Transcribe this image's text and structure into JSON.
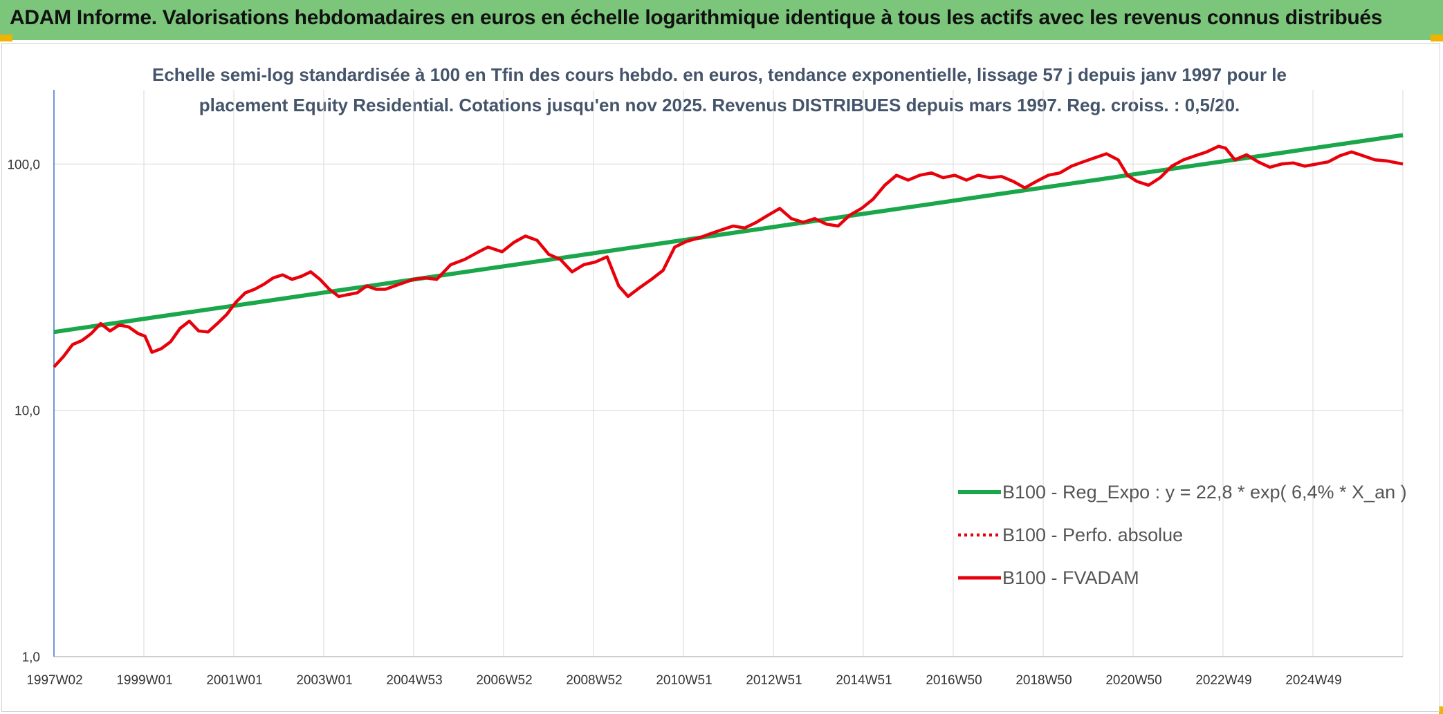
{
  "header": {
    "title": "ADAM Informe. Valorisations hebdomadaires en euros en échelle logarithmique identique à tous les actifs avec les revenus connus distribués"
  },
  "colors": {
    "header_bg": "#7bc67b",
    "accent_corner": "#f0b400",
    "regression": "#1aa64a",
    "series": "#e8000b",
    "gridline": "#d9d9d9",
    "axis": "#4472c4",
    "subtitle": "#44546a"
  },
  "chart_data": {
    "type": "line",
    "subtitle_line1": "Echelle semi-log standardisée à 100 en Tfin des cours hebdo. en euros, tendance exponentielle, lissage 57 j depuis janv 1997 pour le",
    "subtitle_line2": "placement Equity Residential. Cotations jusqu'en nov 2025. Revenus DISTRIBUES depuis mars 1997. Reg. croiss. : 0,5/20.",
    "y_scale": "log",
    "ylim": [
      1,
      200
    ],
    "y_ticks": [
      "1,0",
      "10,0",
      "100,0"
    ],
    "x_tick_labels": [
      "1997W02",
      "1999W01",
      "2001W01",
      "2003W01",
      "2004W53",
      "2006W52",
      "2008W52",
      "2010W51",
      "2012W51",
      "2014W51",
      "2016W50",
      "2018W50",
      "2020W50",
      "2022W49",
      "2024W49"
    ],
    "x_range_years": [
      1997.0,
      2025.9
    ],
    "grid": "vertical and horizontal",
    "legend_position": "bottom-right",
    "legend": [
      {
        "label": "B100 - Reg_Expo : y = 22,8 * exp( 6,4% *  X_an )",
        "style": "solid-green"
      },
      {
        "label": "B100 - Perfo. absolue",
        "style": "dotted-red"
      },
      {
        "label": "B100 - FVADAM",
        "style": "solid-red"
      }
    ],
    "series": [
      {
        "name": "B100 - Reg_Expo : y = 22,8 * exp( 6,4% *  X_an )",
        "kind": "regression",
        "x": [
          1997.0,
          2025.9
        ],
        "y": [
          20.8,
          131.0
        ]
      },
      {
        "name": "B100 - FVADAM",
        "kind": "line",
        "x": [
          1997.0,
          1997.2,
          1997.4,
          1997.6,
          1997.8,
          1998.0,
          1998.2,
          1998.4,
          1998.6,
          1998.8,
          1998.95,
          1999.1,
          1999.3,
          1999.5,
          1999.7,
          1999.9,
          2000.1,
          2000.3,
          2000.5,
          2000.7,
          2000.9,
          2001.1,
          2001.3,
          2001.5,
          2001.7,
          2001.9,
          2002.1,
          2002.3,
          2002.5,
          2002.7,
          2002.9,
          2003.1,
          2003.3,
          2003.5,
          2003.7,
          2003.9,
          2004.1,
          2004.4,
          2004.7,
          2004.95,
          2005.2,
          2005.5,
          2005.8,
          2006.1,
          2006.3,
          2006.6,
          2006.85,
          2007.1,
          2007.35,
          2007.6,
          2007.85,
          2008.1,
          2008.35,
          2008.6,
          2008.85,
          2009.1,
          2009.3,
          2009.55,
          2009.8,
          2010.05,
          2010.3,
          2010.55,
          2010.8,
          2011.05,
          2011.3,
          2011.55,
          2011.8,
          2012.05,
          2012.3,
          2012.55,
          2012.8,
          2013.05,
          2013.3,
          2013.55,
          2013.8,
          2014.05,
          2014.3,
          2014.55,
          2014.8,
          2015.05,
          2015.3,
          2015.55,
          2015.8,
          2016.05,
          2016.3,
          2016.55,
          2016.8,
          2017.05,
          2017.3,
          2017.55,
          2017.8,
          2018.05,
          2018.3,
          2018.55,
          2018.8,
          2019.05,
          2019.3,
          2019.55,
          2019.8,
          2020.0,
          2020.2,
          2020.45,
          2020.7,
          2020.95,
          2021.2,
          2021.45,
          2021.7,
          2021.95,
          2022.1,
          2022.3,
          2022.55,
          2022.8,
          2023.05,
          2023.3,
          2023.55,
          2023.8,
          2024.05,
          2024.3,
          2024.55,
          2024.8,
          2025.05,
          2025.3,
          2025.55,
          2025.9
        ],
        "y": [
          15.0,
          16.5,
          18.5,
          19.2,
          20.5,
          22.5,
          21.0,
          22.2,
          21.8,
          20.5,
          20.0,
          17.2,
          17.8,
          19.0,
          21.5,
          23.0,
          21.0,
          20.8,
          22.5,
          24.5,
          27.5,
          30.0,
          31.0,
          32.5,
          34.5,
          35.5,
          34.0,
          35.0,
          36.5,
          34.0,
          31.0,
          29.0,
          29.5,
          30.0,
          32.0,
          31.0,
          31.0,
          32.5,
          34.0,
          34.5,
          34.0,
          39.0,
          41.0,
          44.0,
          46.0,
          44.0,
          48.0,
          51.0,
          49.0,
          43.0,
          41.0,
          36.5,
          39.0,
          40.0,
          42.0,
          32.0,
          29.0,
          31.5,
          34.0,
          37.0,
          46.0,
          48.5,
          50.0,
          52.0,
          54.0,
          56.0,
          55.0,
          58.0,
          62.0,
          66.0,
          60.0,
          58.0,
          60.0,
          57.0,
          56.0,
          62.0,
          66.0,
          72.0,
          82.0,
          90.0,
          86.0,
          90.0,
          92.0,
          88.0,
          90.0,
          86.0,
          90.0,
          88.0,
          89.0,
          85.0,
          80.0,
          85.0,
          90.0,
          92.0,
          98.0,
          102.0,
          106.0,
          110.0,
          104.0,
          90.0,
          85.0,
          82.0,
          88.0,
          98.0,
          104.0,
          108.0,
          112.0,
          118.0,
          116.0,
          104.0,
          109.0,
          102.0,
          97.0,
          100.0,
          101.0,
          98.0,
          100.0,
          102.0,
          108.0,
          112.0,
          108.0,
          104.0,
          103.0,
          100.0
        ]
      }
    ]
  }
}
